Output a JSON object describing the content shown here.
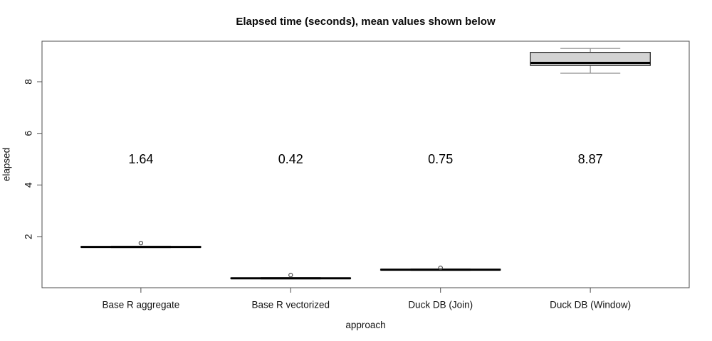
{
  "title": "Elapsed time (seconds), mean values shown below",
  "chart_data": {
    "type": "boxplot",
    "title": "Elapsed time (seconds), mean values shown below",
    "xlabel": "approach",
    "ylabel": "elapsed",
    "categories": [
      "Base R aggregate",
      "Base R vectorized",
      "Duck DB (Join)",
      "Duck DB (Window)"
    ],
    "y_ticks": [
      2,
      4,
      6,
      8
    ],
    "ylim": [
      0.02,
      9.57
    ],
    "grid": false,
    "legend": false,
    "mean_label_y": 5,
    "means": [
      1.64,
      0.42,
      0.75,
      8.87
    ],
    "mean_labels": [
      "1.64",
      "0.42",
      "0.75",
      "8.87"
    ],
    "boxes": [
      {
        "category": "Base R aggregate",
        "low": 1.57,
        "q1": 1.585,
        "median": 1.6,
        "q3": 1.615,
        "high": 1.63,
        "outliers": [
          1.75
        ],
        "mean": 1.64
      },
      {
        "category": "Base R vectorized",
        "low": 0.355,
        "q1": 0.37,
        "median": 0.385,
        "q3": 0.4,
        "high": 0.415,
        "outliers": [
          0.51
        ],
        "mean": 0.42
      },
      {
        "category": "Duck DB (Join)",
        "low": 0.69,
        "q1": 0.705,
        "median": 0.72,
        "q3": 0.735,
        "high": 0.75,
        "outliers": [
          0.79
        ],
        "mean": 0.75
      },
      {
        "category": "Duck DB (Window)",
        "low": 8.33,
        "q1": 8.63,
        "median": 8.73,
        "q3": 9.14,
        "high": 9.29,
        "outliers": [],
        "mean": 8.87
      }
    ],
    "colors": {
      "background": "#ffffff",
      "frame": "#4d4d4d",
      "tick": "#4d4d4d",
      "text": "#111111",
      "box_fill": "#d3d3d3",
      "box_border": "#1a1a1a",
      "median": "#000000",
      "whisker": "#8c8c8c",
      "outlier": "#3d3d3d"
    }
  }
}
